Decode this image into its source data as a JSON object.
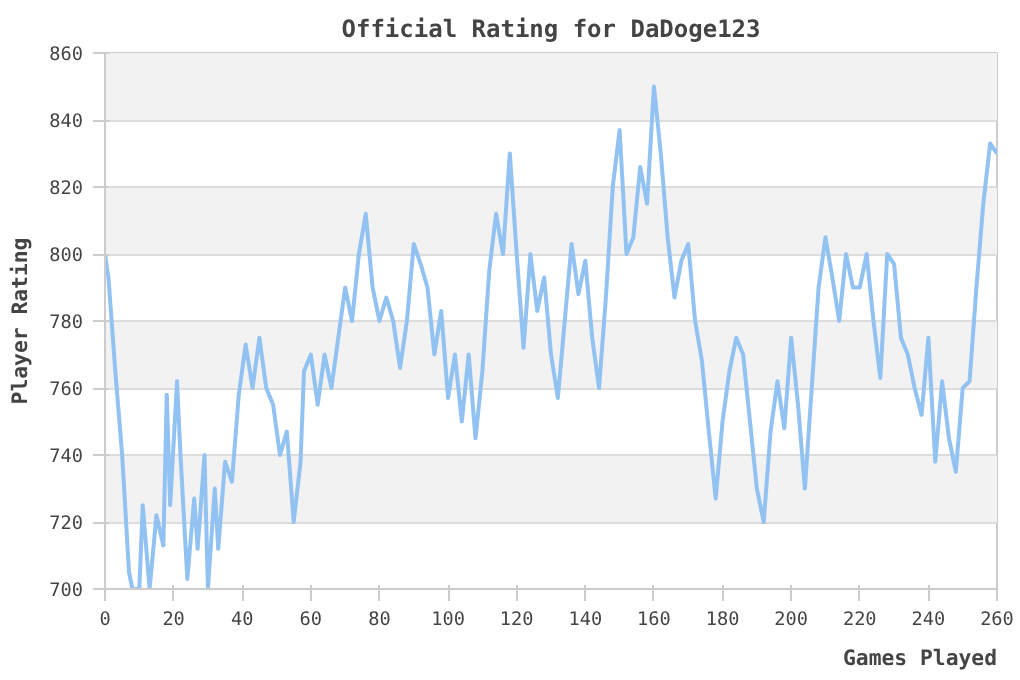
{
  "chart_data": {
    "type": "line",
    "title": "Official Rating for DaDoge123",
    "xlabel": "Games Played",
    "ylabel": "Player Rating",
    "x": [
      0,
      1,
      3,
      5,
      7,
      8,
      10,
      11,
      13,
      15,
      17,
      18,
      19,
      21,
      22,
      24,
      26,
      27,
      29,
      30,
      32,
      33,
      35,
      37,
      39,
      41,
      43,
      45,
      47,
      49,
      51,
      53,
      55,
      57,
      58,
      60,
      62,
      64,
      66,
      68,
      70,
      72,
      74,
      76,
      78,
      80,
      82,
      84,
      86,
      88,
      90,
      92,
      94,
      96,
      98,
      100,
      102,
      104,
      106,
      108,
      110,
      112,
      114,
      116,
      118,
      120,
      122,
      124,
      126,
      128,
      130,
      132,
      134,
      136,
      138,
      140,
      142,
      144,
      146,
      148,
      150,
      152,
      154,
      156,
      158,
      160,
      162,
      164,
      166,
      168,
      170,
      172,
      174,
      176,
      178,
      180,
      182,
      184,
      186,
      188,
      190,
      192,
      194,
      196,
      198,
      200,
      202,
      204,
      206,
      208,
      210,
      212,
      214,
      216,
      218,
      220,
      222,
      224,
      226,
      228,
      230,
      232,
      234,
      236,
      238,
      240,
      242,
      244,
      246,
      248,
      250,
      252,
      254,
      256,
      258,
      260
    ],
    "series": [
      {
        "color": "#92c2f2",
        "values": [
          800,
          793,
          765,
          740,
          705,
          700,
          700,
          725,
          700,
          722,
          713,
          758,
          725,
          762,
          740,
          703,
          727,
          712,
          740,
          700,
          730,
          712,
          738,
          732,
          758,
          773,
          760,
          775,
          760,
          755,
          740,
          747,
          720,
          738,
          765,
          770,
          755,
          770,
          760,
          775,
          790,
          780,
          800,
          812,
          790,
          780,
          787,
          780,
          766,
          780,
          803,
          797,
          790,
          770,
          783,
          757,
          770,
          750,
          770,
          745,
          765,
          795,
          812,
          800,
          830,
          800,
          772,
          800,
          783,
          793,
          770,
          757,
          780,
          803,
          788,
          798,
          775,
          760,
          787,
          820,
          837,
          800,
          805,
          826,
          815,
          850,
          830,
          805,
          787,
          798,
          803,
          780,
          768,
          747,
          727,
          750,
          765,
          775,
          770,
          750,
          730,
          720,
          747,
          762,
          748,
          775,
          755,
          730,
          760,
          790,
          805,
          793,
          780,
          800,
          790,
          790,
          800,
          780,
          763,
          800,
          797,
          775,
          770,
          760,
          752,
          775,
          738,
          762,
          745,
          735,
          760,
          762,
          790,
          815,
          833,
          830
        ]
      }
    ],
    "xlim": [
      0,
      260
    ],
    "ylim": [
      700,
      860
    ],
    "xticks": [
      0,
      20,
      40,
      60,
      80,
      100,
      120,
      140,
      160,
      180,
      200,
      220,
      240,
      260
    ],
    "yticks": [
      700,
      720,
      740,
      760,
      780,
      800,
      820,
      840,
      860
    ],
    "grid": "y",
    "marker": "none",
    "line_style": "solid"
  }
}
